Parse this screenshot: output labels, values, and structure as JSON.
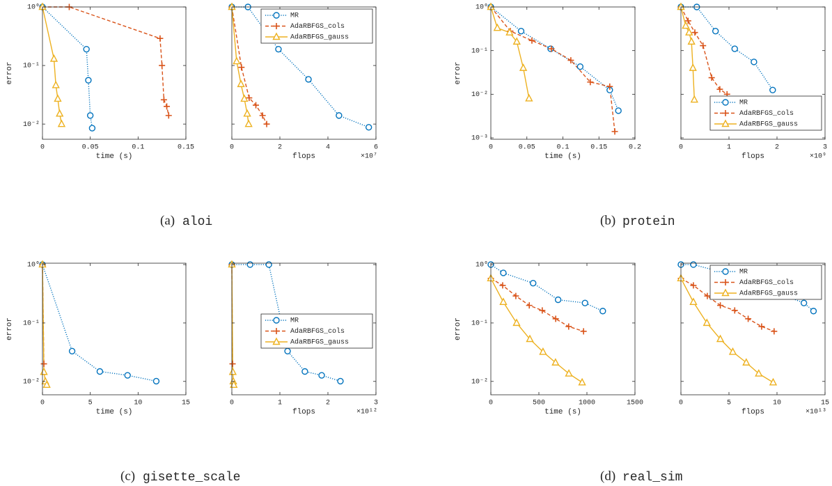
{
  "chart_data": [
    {
      "type": "line",
      "xlabel": "time (s)",
      "ylabel": "error",
      "yscale": "log",
      "xlim": [
        0,
        0.15
      ],
      "xticks": [
        0,
        0.05,
        0.1,
        0.15
      ],
      "ylim": [
        0.0055,
        1
      ],
      "yticks": [
        {
          "value": 1,
          "label": "10⁰"
        },
        {
          "value": 0.1,
          "label": "10⁻¹"
        },
        {
          "value": 0.01,
          "label": "10⁻²"
        }
      ],
      "series": [
        {
          "color": "#0072BD",
          "style": "dotted",
          "marker": "circle",
          "x": [
            0,
            0.046,
            0.048,
            0.05,
            0.052
          ],
          "values": [
            1,
            0.19,
            0.056,
            0.014,
            0.0085
          ]
        },
        {
          "color": "#D95319",
          "style": "dashed",
          "marker": "plus",
          "x": [
            0,
            0.028,
            0.123,
            0.125,
            0.127,
            0.13,
            0.132
          ],
          "values": [
            1,
            1,
            0.29,
            0.1,
            0.026,
            0.02,
            0.014
          ]
        },
        {
          "color": "#EDB120",
          "style": "solid",
          "marker": "triangle",
          "x": [
            0,
            0.012,
            0.014,
            0.016,
            0.018,
            0.02
          ],
          "values": [
            1,
            0.13,
            0.046,
            0.027,
            0.015,
            0.01
          ]
        }
      ]
    },
    {
      "type": "line",
      "xlabel": "flops",
      "x_multiplier": "×10⁷",
      "yscale": "log",
      "legend": "upper right",
      "xlim": [
        0,
        6
      ],
      "xticks": [
        0,
        2,
        4,
        6
      ],
      "ylim": [
        0.0055,
        1
      ],
      "yticks": [
        1,
        0.1,
        0.01
      ],
      "series": [
        {
          "name": "MR",
          "color": "#0072BD",
          "style": "dotted",
          "marker": "circle",
          "x": [
            0,
            0.67,
            1.94,
            3.19,
            4.46,
            5.7
          ],
          "values": [
            1,
            1,
            0.19,
            0.058,
            0.014,
            0.0088
          ]
        },
        {
          "name": "AdaRBFGS_cols",
          "color": "#D95319",
          "style": "dashed",
          "marker": "plus",
          "x": [
            0,
            0.4,
            0.72,
            1.0,
            1.28,
            1.45
          ],
          "values": [
            1,
            0.093,
            0.028,
            0.021,
            0.014,
            0.01
          ]
        },
        {
          "name": "AdaRBFGS_gauss",
          "color": "#EDB120",
          "style": "solid",
          "marker": "triangle",
          "x": [
            0,
            0.2,
            0.38,
            0.52,
            0.64,
            0.7
          ],
          "values": [
            1,
            0.118,
            0.048,
            0.027,
            0.015,
            0.01
          ]
        }
      ]
    },
    {
      "type": "line",
      "xlabel": "time (s)",
      "ylabel": "error",
      "yscale": "log",
      "xlim": [
        0,
        0.2
      ],
      "xticks": [
        0,
        0.05,
        0.1,
        0.15,
        0.2
      ],
      "ylim": [
        0.00093,
        1
      ],
      "yticks": [
        {
          "value": 1,
          "label": "10⁰"
        },
        {
          "value": 0.1,
          "label": "10⁻¹"
        },
        {
          "value": 0.01,
          "label": "10⁻²"
        },
        {
          "value": 0.001,
          "label": "10⁻³"
        }
      ],
      "series": [
        {
          "color": "#0072BD",
          "style": "dotted",
          "marker": "circle",
          "x": [
            0,
            0.042,
            0.083,
            0.124,
            0.165,
            0.177
          ],
          "values": [
            1,
            0.28,
            0.11,
            0.043,
            0.0125,
            0.0042
          ]
        },
        {
          "color": "#D95319",
          "style": "dashed",
          "marker": "plus",
          "x": [
            0,
            0.027,
            0.057,
            0.084,
            0.111,
            0.138,
            0.165,
            0.172
          ],
          "values": [
            1,
            0.28,
            0.17,
            0.11,
            0.06,
            0.019,
            0.015,
            0.0014
          ]
        },
        {
          "color": "#EDB120",
          "style": "solid",
          "marker": "triangle",
          "x": [
            0,
            0.009,
            0.026,
            0.036,
            0.045,
            0.053
          ],
          "values": [
            1,
            0.33,
            0.26,
            0.16,
            0.04,
            0.008
          ]
        }
      ]
    },
    {
      "type": "line",
      "xlabel": "flops",
      "x_multiplier": "×10⁹",
      "yscale": "log",
      "legend": "lower right",
      "xlim": [
        0,
        3
      ],
      "xticks": [
        0,
        1,
        2,
        3
      ],
      "ylim": [
        0.00093,
        1
      ],
      "yticks": [
        1,
        0.1,
        0.01,
        0.001
      ],
      "series": [
        {
          "name": "MR",
          "color": "#0072BD",
          "style": "dotted",
          "marker": "circle",
          "x": [
            0,
            0.33,
            0.72,
            1.12,
            1.52,
            1.91
          ],
          "values": [
            1,
            1,
            0.28,
            0.11,
            0.055,
            0.0125
          ]
        },
        {
          "name": "AdaRBFGS_cols",
          "color": "#D95319",
          "style": "dashed",
          "marker": "plus",
          "x": [
            0,
            0.15,
            0.29,
            0.46,
            0.64,
            0.81,
            0.96
          ],
          "values": [
            1,
            0.48,
            0.26,
            0.13,
            0.024,
            0.013,
            0.01
          ]
        },
        {
          "name": "AdaRBFGS_gauss",
          "color": "#EDB120",
          "style": "solid",
          "marker": "triangle",
          "x": [
            0,
            0.1,
            0.17,
            0.22,
            0.25,
            0.28
          ],
          "values": [
            1,
            0.37,
            0.26,
            0.16,
            0.04,
            0.0075
          ]
        }
      ]
    },
    {
      "type": "line",
      "xlabel": "time (s)",
      "ylabel": "error",
      "yscale": "log",
      "xlim": [
        0,
        15
      ],
      "xticks": [
        0,
        5,
        10,
        15
      ],
      "ylim": [
        0.0059,
        1.056
      ],
      "yticks": [
        {
          "value": 1,
          "label": "10⁰"
        },
        {
          "value": 0.1,
          "label": "10⁻¹"
        },
        {
          "value": 0.01,
          "label": "10⁻²"
        }
      ],
      "series": [
        {
          "color": "#0072BD",
          "style": "dotted",
          "marker": "circle",
          "x": [
            0,
            3.1,
            6.0,
            8.9,
            11.9
          ],
          "values": [
            1,
            0.033,
            0.0148,
            0.0127,
            0.0101
          ]
        },
        {
          "color": "#D95319",
          "style": "dashed",
          "marker": "plus",
          "x": [
            0,
            0.15
          ],
          "values": [
            1,
            0.02
          ]
        },
        {
          "color": "#EDB120",
          "style": "solid",
          "marker": "triangle",
          "x": [
            0,
            0.15,
            0.3,
            0.45
          ],
          "values": [
            1,
            0.0145,
            0.01,
            0.0087
          ]
        }
      ]
    },
    {
      "type": "line",
      "xlabel": "flops",
      "x_multiplier": "×10¹²",
      "yscale": "log",
      "legend": "center right",
      "xlim": [
        0,
        3
      ],
      "xticks": [
        0,
        1,
        2,
        3
      ],
      "ylim": [
        0.0059,
        1.056
      ],
      "yticks": [
        1,
        0.1,
        0.01
      ],
      "series": [
        {
          "name": "MR",
          "color": "#0072BD",
          "style": "dotted",
          "marker": "circle",
          "x": [
            0,
            0.38,
            0.77,
            1.16,
            1.52,
            1.87,
            2.26
          ],
          "values": [
            1,
            1,
            1,
            0.033,
            0.0148,
            0.0127,
            0.0101
          ]
        },
        {
          "name": "AdaRBFGS_cols",
          "color": "#D95319",
          "style": "dashed",
          "marker": "plus",
          "x": [
            0,
            0.015
          ],
          "values": [
            1,
            0.02
          ]
        },
        {
          "name": "AdaRBFGS_gauss",
          "color": "#EDB120",
          "style": "solid",
          "marker": "triangle",
          "x": [
            0,
            0.02,
            0.03,
            0.04
          ],
          "values": [
            1,
            0.0145,
            0.01,
            0.0087
          ]
        }
      ]
    },
    {
      "type": "line",
      "xlabel": "time (s)",
      "ylabel": "error",
      "yscale": "log",
      "xlim": [
        0,
        1500
      ],
      "xticks": [
        0,
        500,
        1000,
        1500
      ],
      "ylim": [
        0.0059,
        1.056
      ],
      "yticks": [
        {
          "value": 1,
          "label": "10⁰"
        },
        {
          "value": 0.1,
          "label": "10⁻¹"
        },
        {
          "value": 0.01,
          "label": "10⁻²"
        }
      ],
      "series": [
        {
          "color": "#0072BD",
          "style": "dotted",
          "marker": "circle",
          "x": [
            0,
            130,
            440,
            700,
            980,
            1165
          ],
          "values": [
            1,
            0.72,
            0.48,
            0.25,
            0.22,
            0.16
          ]
        },
        {
          "color": "#D95319",
          "style": "dashed",
          "marker": "plus",
          "x": [
            0,
            123,
            260,
            400,
            535,
            675,
            810,
            965
          ],
          "values": [
            0.58,
            0.44,
            0.29,
            0.2,
            0.164,
            0.118,
            0.087,
            0.072
          ]
        },
        {
          "color": "#EDB120",
          "style": "solid",
          "marker": "triangle",
          "x": [
            0,
            130,
            268,
            406,
            543,
            673,
            812,
            950
          ],
          "values": [
            0.58,
            0.228,
            0.1,
            0.053,
            0.032,
            0.021,
            0.0136,
            0.0096
          ]
        }
      ]
    },
    {
      "type": "line",
      "xlabel": "flops",
      "x_multiplier": "×10¹³",
      "yscale": "log",
      "legend": "upper right",
      "xlim": [
        0,
        15
      ],
      "xticks": [
        0,
        5,
        10,
        15
      ],
      "ylim": [
        0.0059,
        1.056
      ],
      "yticks": [
        1,
        0.1,
        0.01
      ],
      "series": [
        {
          "name": "MR",
          "color": "#0072BD",
          "style": "dotted",
          "marker": "circle",
          "x": [
            0,
            1.3,
            6.7,
            9.6,
            12.8,
            13.8
          ],
          "values": [
            1,
            1,
            0.58,
            0.35,
            0.22,
            0.16
          ]
        },
        {
          "name": "AdaRBFGS_cols",
          "color": "#D95319",
          "style": "dashed",
          "marker": "plus",
          "x": [
            0,
            1.3,
            2.75,
            4.1,
            5.6,
            7.0,
            8.4,
            9.7
          ],
          "values": [
            0.58,
            0.44,
            0.29,
            0.2,
            0.164,
            0.118,
            0.087,
            0.072
          ]
        },
        {
          "name": "AdaRBFGS_gauss",
          "color": "#EDB120",
          "style": "solid",
          "marker": "triangle",
          "x": [
            0,
            1.3,
            2.7,
            4.1,
            5.4,
            6.8,
            8.1,
            9.6
          ],
          "values": [
            0.58,
            0.228,
            0.1,
            0.053,
            0.032,
            0.021,
            0.0136,
            0.0096
          ]
        }
      ]
    }
  ],
  "captions": [
    {
      "label": "(a)",
      "name": "aloi"
    },
    {
      "label": "(b)",
      "name": "protein"
    },
    {
      "label": "(c)",
      "name": "gisette_scale"
    },
    {
      "label": "(d)",
      "name": "real_sim"
    }
  ]
}
